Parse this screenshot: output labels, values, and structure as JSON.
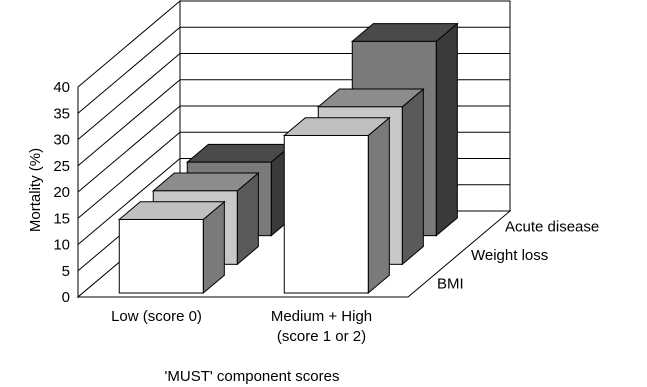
{
  "chart_data": {
    "type": "bar",
    "style": "3d-clustered-depth",
    "categories": [
      "Low (score 0)",
      "Medium + High (score 1 or 2)"
    ],
    "category_label_lines": [
      [
        "Low (score 0)"
      ],
      [
        "Medium + High",
        "(score 1 or 2)"
      ]
    ],
    "series": [
      {
        "name": "BMI",
        "values": [
          14,
          30
        ]
      },
      {
        "name": "Weight loss",
        "values": [
          14,
          30
        ]
      },
      {
        "name": "Acute disease",
        "values": [
          14,
          37
        ]
      }
    ],
    "xlabel": "'MUST' component scores",
    "ylabel": "Mortality (%)",
    "ylim": [
      0,
      40
    ],
    "yticks": [
      0,
      5,
      10,
      15,
      20,
      25,
      30,
      35,
      40
    ],
    "grid": true,
    "legend": "depth-axis-right",
    "colors": {
      "front": [
        "#ffffff",
        "#c8c8c8",
        "#7a7a7a"
      ],
      "top": [
        "#c0c0c0",
        "#8c8c8c",
        "#4a4a4a"
      ],
      "side": [
        "#7a7a7a",
        "#5a5a5a",
        "#3a3a3a"
      ],
      "line": "#000000"
    }
  }
}
